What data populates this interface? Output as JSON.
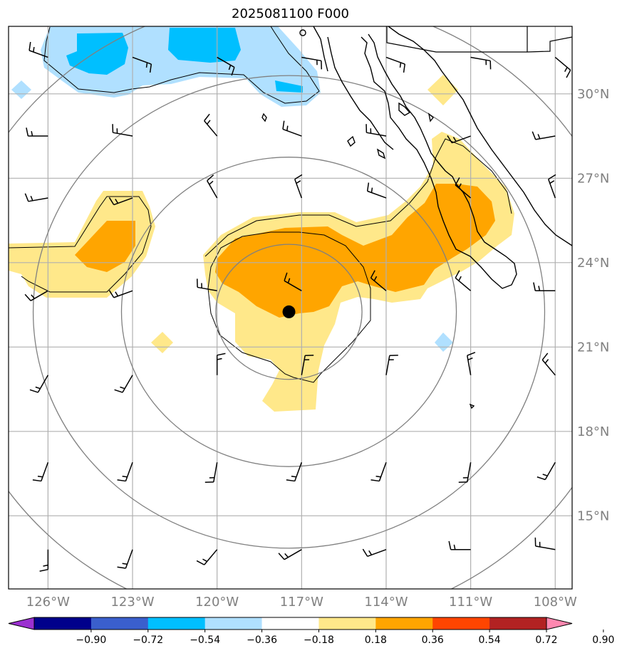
{
  "map": {
    "title": "2025081100 F000",
    "lat_ticks": [
      {
        "deg": 30,
        "label": "30°N"
      },
      {
        "deg": 27,
        "label": "27°N"
      },
      {
        "deg": 24,
        "label": "24°N"
      },
      {
        "deg": 21,
        "label": "21°N"
      },
      {
        "deg": 18,
        "label": "18°N"
      },
      {
        "deg": 15,
        "label": "15°N"
      }
    ],
    "lon_ticks": [
      {
        "deg": -126,
        "label": "126°W"
      },
      {
        "deg": -123,
        "label": "123°W"
      },
      {
        "deg": -120,
        "label": "120°W"
      },
      {
        "deg": -117,
        "label": "117°W"
      },
      {
        "deg": -114,
        "label": "114°W"
      },
      {
        "deg": -111,
        "label": "111°W"
      },
      {
        "deg": -108,
        "label": "108°W"
      }
    ],
    "extent": {
      "lon_min": -127.4,
      "lon_max": -107.4,
      "lat_min": 12.4,
      "lat_max": 32.4
    },
    "center_marker": {
      "lon": -117.45,
      "lat": 22.25
    },
    "range_rings_deg": [
      2.4,
      5.5,
      8.4,
      11.2
    ]
  },
  "colorbar": {
    "levels": [
      "−0.90",
      "−0.72",
      "−0.54",
      "−0.36",
      "−0.18",
      "0.18",
      "0.36",
      "0.54",
      "0.72",
      "0.90"
    ],
    "colors": [
      "#9b30d0",
      "#00008b",
      "#3a5fcd",
      "#00bfff",
      "#b0e0ff",
      "#ffffff",
      "#ffe88a",
      "#ffa500",
      "#ff4500",
      "#b22222",
      "#ff88b0"
    ]
  },
  "colors": {
    "light_blue": "#b0e0ff",
    "blue": "#00bfff",
    "light_yellow": "#ffe88a",
    "orange": "#ffa500",
    "grid": "#b0b0b0",
    "ring": "#808080"
  }
}
